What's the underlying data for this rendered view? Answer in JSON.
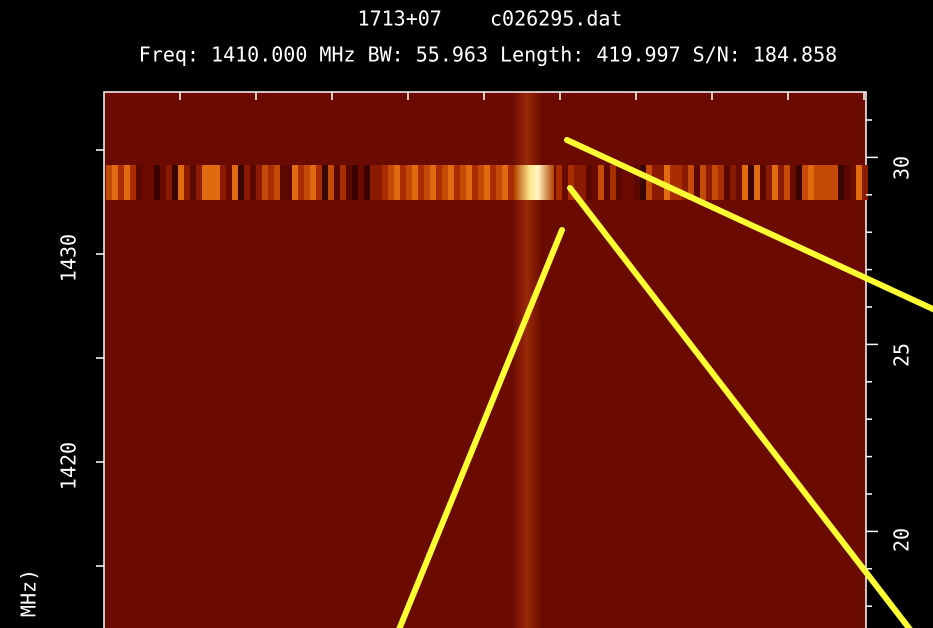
{
  "header": {
    "title": "1713+07    c026295.dat",
    "subtitle": "Freq: 1410.000 MHz BW: 55.963 Length: 419.997 S/N: 184.858"
  },
  "left_axis": {
    "label": "MHz)",
    "ticks": [
      "1430",
      "1420"
    ]
  },
  "right_axis": {
    "ticks": [
      "30",
      "25",
      "20"
    ]
  }
}
